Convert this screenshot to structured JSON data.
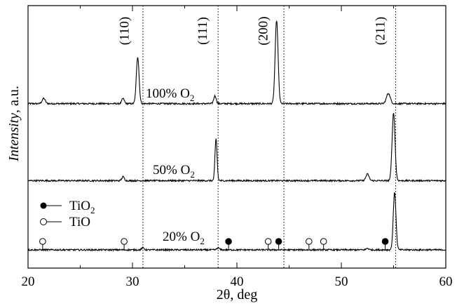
{
  "chart_data": {
    "type": "line",
    "xlabel": "2θ, deg",
    "ylabel_italic": "Intensity",
    "ylabel_rest": ", a.u.",
    "xlim": [
      20,
      60
    ],
    "xticks": [
      20,
      30,
      40,
      50,
      60
    ],
    "grid": false,
    "reference_lines": [
      31.0,
      38.2,
      44.5,
      55.2
    ],
    "peak_labels": [
      {
        "text": "(110)",
        "x": 30.5
      },
      {
        "text": "(111)",
        "x": 38.0
      },
      {
        "text": "(200)",
        "x": 43.8
      },
      {
        "text": "(211)",
        "x": 55.0
      }
    ],
    "series": [
      {
        "label_main": "100% O",
        "label_sub": "2",
        "baseline": 0.56,
        "peaks": [
          {
            "x": 21.5,
            "h": 0.02,
            "w": 0.15
          },
          {
            "x": 29.1,
            "h": 0.02,
            "w": 0.12
          },
          {
            "x": 30.5,
            "h": 0.18,
            "w": 0.13
          },
          {
            "x": 37.9,
            "h": 0.03,
            "w": 0.12
          },
          {
            "x": 43.8,
            "h": 0.32,
            "w": 0.14
          },
          {
            "x": 54.5,
            "h": 0.04,
            "w": 0.18
          }
        ]
      },
      {
        "label_main": "50% O",
        "label_sub": "2",
        "baseline": 0.265,
        "peaks": [
          {
            "x": 29.1,
            "h": 0.015,
            "w": 0.12
          },
          {
            "x": 38.0,
            "h": 0.16,
            "w": 0.1
          },
          {
            "x": 52.5,
            "h": 0.025,
            "w": 0.15
          },
          {
            "x": 55.0,
            "h": 0.26,
            "w": 0.14
          }
        ]
      },
      {
        "label_main": "20% O",
        "label_sub": "2",
        "baseline": 0.0,
        "peaks": [
          {
            "x": 31.0,
            "h": 0.008,
            "w": 0.12
          },
          {
            "x": 38.2,
            "h": 0.008,
            "w": 0.12
          },
          {
            "x": 52.5,
            "h": 0.006,
            "w": 0.12
          },
          {
            "x": 55.1,
            "h": 0.22,
            "w": 0.13
          }
        ]
      }
    ],
    "reference_markers": {
      "TiO2": {
        "legend": "TiO",
        "legend_sub": "2",
        "style": "filled",
        "positions": [
          39.2,
          44.0,
          54.2
        ]
      },
      "TiO": {
        "legend": "TiO",
        "legend_sub": "",
        "style": "open",
        "positions": [
          21.4,
          29.2,
          43.0,
          46.9,
          48.3
        ]
      }
    }
  }
}
